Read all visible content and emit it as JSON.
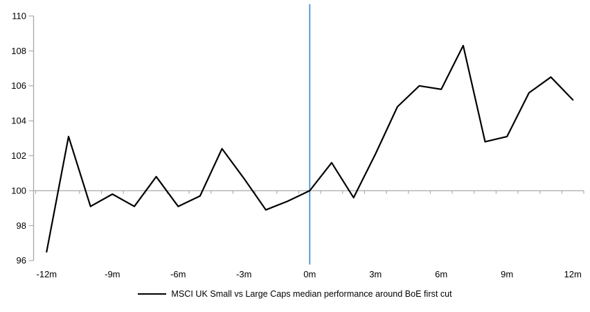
{
  "chart_data": {
    "type": "line",
    "x_months": [
      -12,
      -11,
      -10,
      -9,
      -8,
      -7,
      -6,
      -5,
      -4,
      -3,
      -2,
      -1,
      0,
      1,
      2,
      3,
      4,
      5,
      6,
      7,
      8,
      9,
      10,
      11,
      12
    ],
    "series": [
      {
        "name": "MSCI UK Small vs Large Caps median performance around BoE first cut",
        "color": "#000000",
        "values": [
          96.5,
          103.1,
          99.1,
          99.8,
          99.1,
          100.8,
          99.1,
          99.7,
          102.4,
          100.7,
          98.9,
          99.4,
          100.0,
          101.6,
          99.6,
          102.1,
          104.8,
          106.0,
          105.8,
          108.3,
          102.8,
          103.1,
          105.6,
          106.5,
          105.2
        ]
      }
    ],
    "y_axis": {
      "min": 96,
      "max": 110,
      "tick_step": 2,
      "tick_labels": [
        "96",
        "98",
        "100",
        "102",
        "104",
        "106",
        "108",
        "110"
      ],
      "crosses_at": 100
    },
    "x_axis": {
      "tick_label_months": [
        -12,
        -9,
        -6,
        -3,
        0,
        3,
        6,
        9,
        12
      ],
      "tick_labels": [
        "-12m",
        "-9m",
        "-6m",
        "-3m",
        "0m",
        "3m",
        "6m",
        "9m",
        "12m"
      ]
    },
    "event_line": {
      "x_month": 0,
      "color": "#5B9BD5"
    },
    "axis_color": "#A6A6A6",
    "gridline_at_100_color": "#A6A6A6",
    "background_color": "#FFFFFF",
    "legend": {
      "position": "bottom-center",
      "label": "MSCI UK Small vs Large Caps median performance around BoE first cut"
    }
  }
}
